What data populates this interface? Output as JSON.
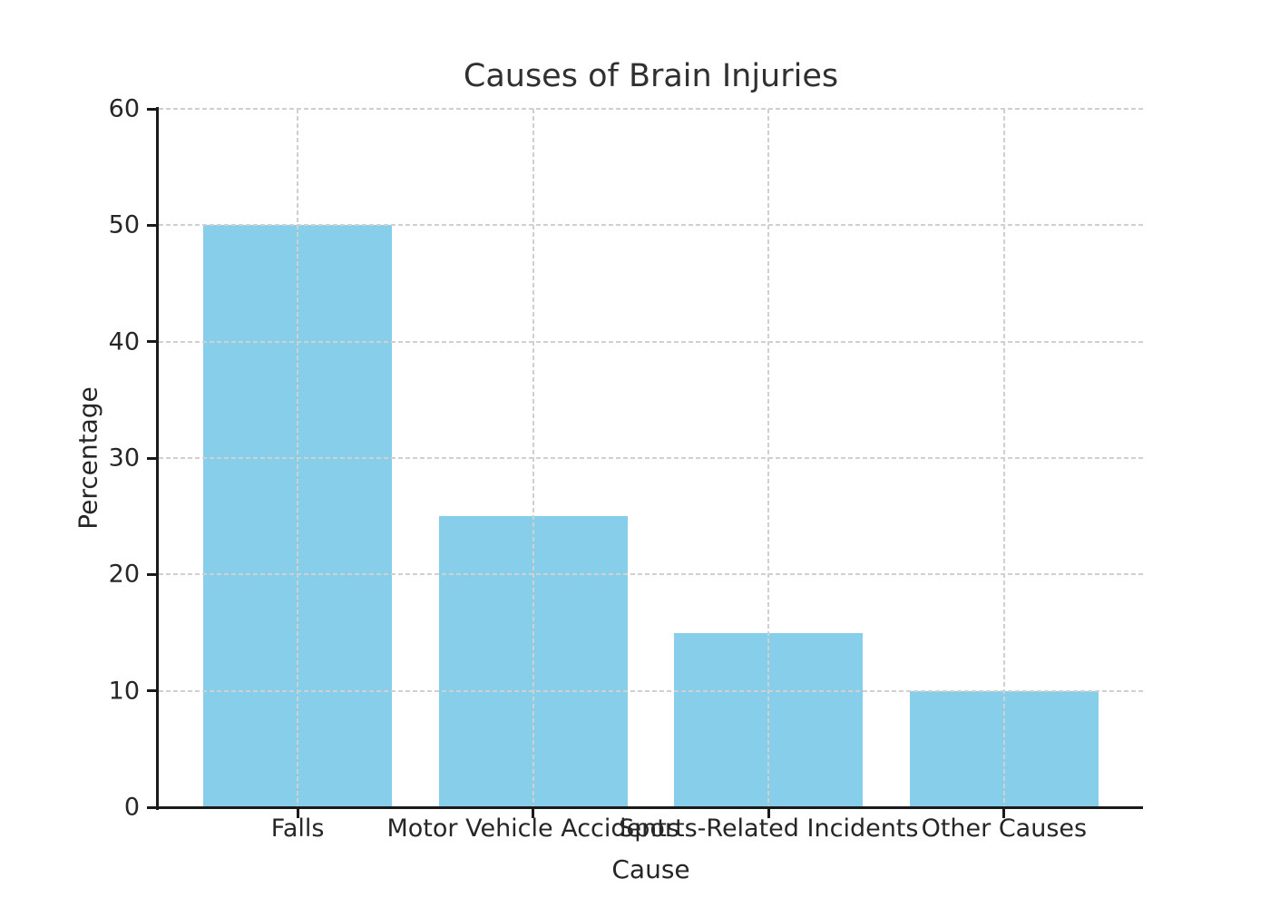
{
  "chart_data": {
    "type": "bar",
    "title": "Causes of Brain Injuries",
    "xlabel": "Cause",
    "ylabel": "Percentage",
    "categories": [
      "Falls",
      "Motor Vehicle Accidents",
      "Sports-Related Incidents",
      "Other Causes"
    ],
    "values": [
      50,
      25,
      15,
      10
    ],
    "ylim": [
      0,
      60
    ],
    "yticks": [
      0,
      10,
      20,
      30,
      40,
      50,
      60
    ],
    "bar_color": "#87CEEB",
    "grid": "dashed-both-axes-drawn-above-bars",
    "grid_color": "#d0d0d0",
    "legend": "none"
  }
}
